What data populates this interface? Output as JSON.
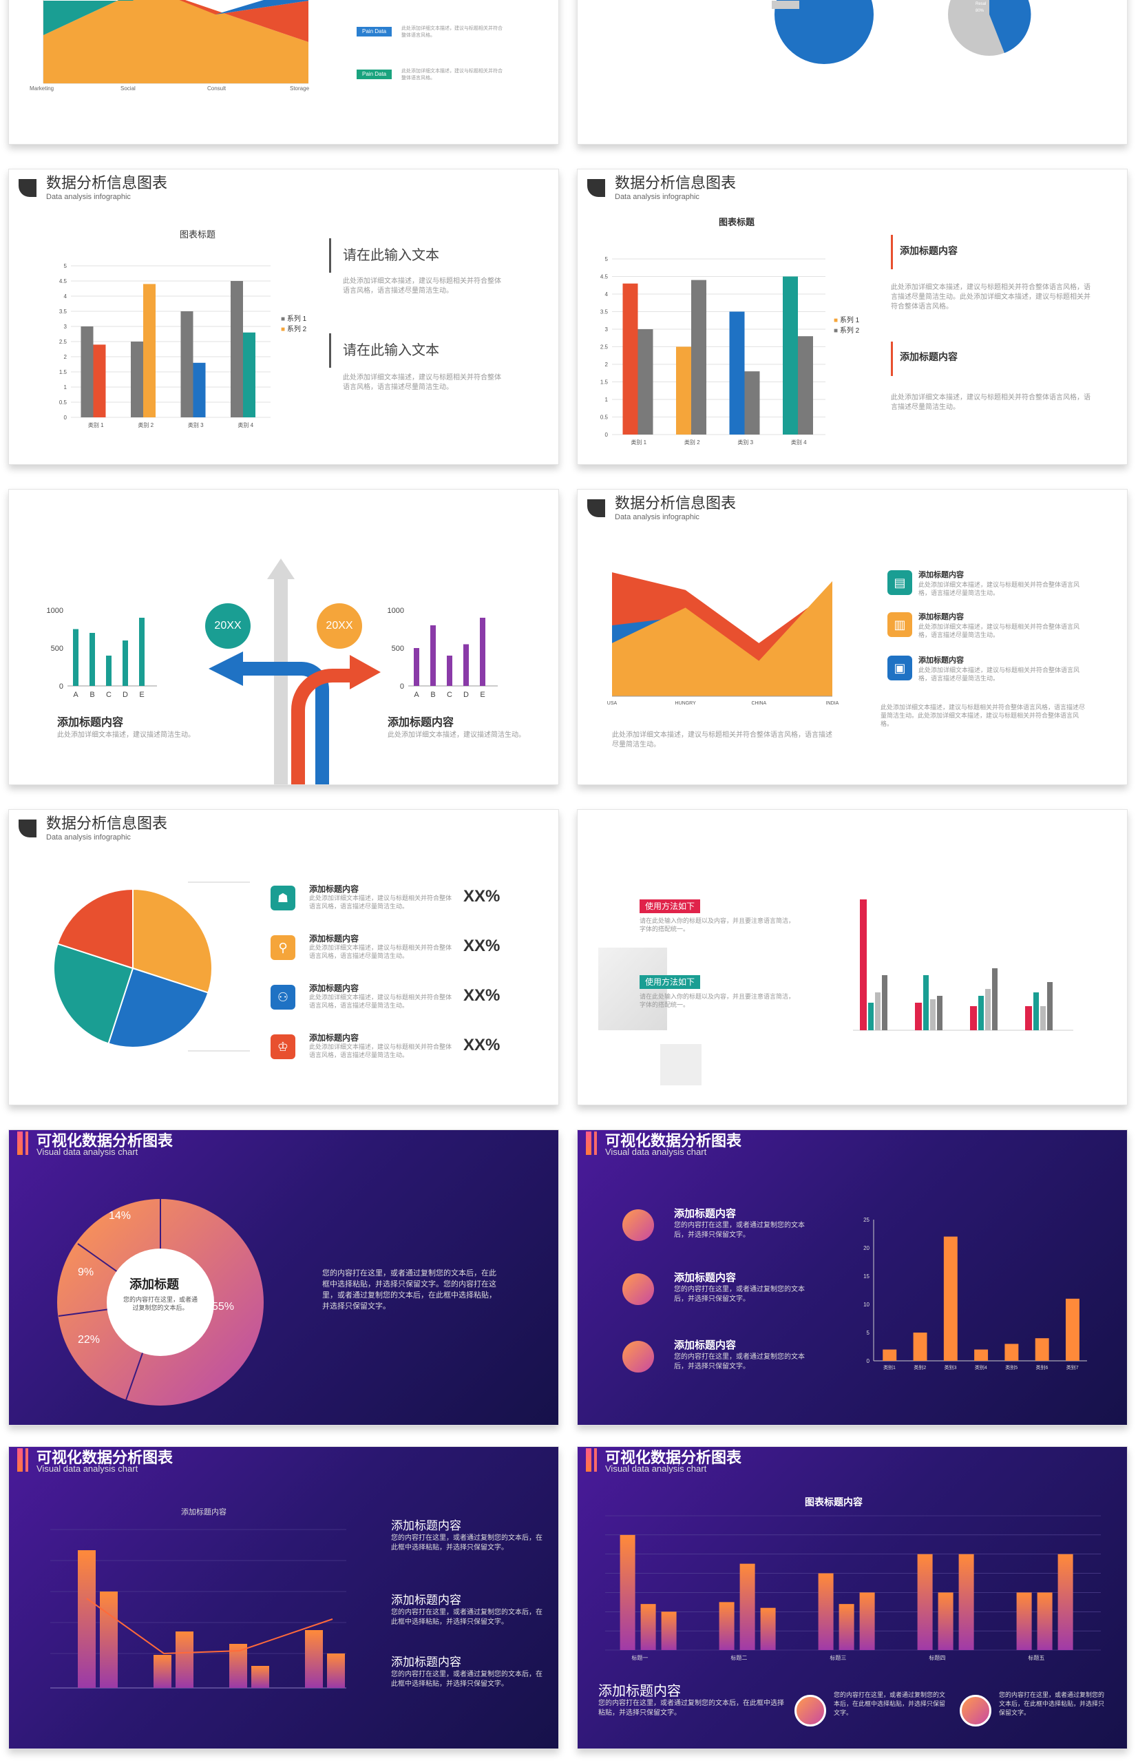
{
  "cards": {
    "c1": {
      "x_labels": [
        "Marketing",
        "Social",
        "Consult",
        "Storage"
      ],
      "tags": [
        "Pain Data",
        "Pain Data"
      ],
      "texts": [
        "此处添加详细文本描述，建议与标题相关并符合整体语言风格。",
        "此处添加详细文本描述，建议与标题相关并符合整体语言风格。"
      ]
    },
    "c2": {
      "pie_label_1": "Resal",
      "pie_label_2": "80%"
    },
    "c3": {
      "title": "数据分析信息图表",
      "subtitle": "Data analysis infographic",
      "chart_title": "图表标题",
      "legend": [
        "系列 1",
        "系列 2"
      ],
      "heading_1": "请在此输入文本",
      "heading_2": "请在此输入文本",
      "text_1": "此处添加详细文本描述，建议与标题相关并符合整体语言风格，语言描述尽量简洁生动。",
      "text_2": "此处添加详细文本描述，建议与标题相关并符合整体语言风格，语言描述尽量简洁生动。"
    },
    "c4": {
      "title": "数据分析信息图表",
      "subtitle": "Data analysis infographic",
      "chart_title": "图表标题",
      "legend": [
        "系列 1",
        "系列 2"
      ],
      "heading_1": "添加标题内容",
      "heading_2": "添加标题内容",
      "text_1": "此处添加详细文本描述，建议与标题相关并符合整体语言风格，语言描述尽量简洁生动。此处添加详细文本描述，建议与标题相关并符合整体语言风格。",
      "text_2": "此处添加详细文本描述，建议与标题相关并符合整体语言风格，语言描述尽量简洁生动。"
    },
    "c5": {
      "badge_left": "20XX",
      "badge_right": "20XX",
      "heading_left": "添加标题内容",
      "heading_right": "添加标题内容",
      "text_left": "此处添加详细文本描述，建议描述简洁生动。",
      "text_right": "此处添加详细文本描述，建议描述简洁生动。"
    },
    "c6": {
      "title": "数据分析信息图表",
      "subtitle": "Data analysis infographic",
      "items": [
        {
          "heading": "添加标题内容",
          "text": "此处添加详细文本描述，建议与标题相关并符合整体语言风格，语言描述尽量简洁生动。"
        },
        {
          "heading": "添加标题内容",
          "text": "此处添加详细文本描述，建议与标题相关并符合整体语言风格，语言描述尽量简洁生动。"
        },
        {
          "heading": "添加标题内容",
          "text": "此处添加详细文本描述，建议与标题相关并符合整体语言风格，语言描述尽量简洁生动。"
        }
      ],
      "bottom_text": "此处添加详细文本描述，建议与标题相关并符合整体语言风格，语言描述尽量简洁生动。",
      "right_text": "此处添加详细文本描述，建议与标题相关并符合整体语言风格，语言描述尽量简洁生动。此处添加详细文本描述，建议与标题相关并符合整体语言风格。"
    },
    "c7": {
      "title": "数据分析信息图表",
      "subtitle": "Data analysis infographic",
      "items": [
        {
          "heading": "添加标题内容",
          "text": "此处添加详细文本描述，建议与标题相关并符合整体语言风格，语言描述尽量简洁生动。",
          "value": "XX%"
        },
        {
          "heading": "添加标题内容",
          "text": "此处添加详细文本描述，建议与标题相关并符合整体语言风格，语言描述尽量简洁生动。",
          "value": "XX%"
        },
        {
          "heading": "添加标题内容",
          "text": "此处添加详细文本描述，建议与标题相关并符合整体语言风格，语言描述尽量简洁生动。",
          "value": "XX%"
        },
        {
          "heading": "添加标题内容",
          "text": "此处添加详细文本描述，建议与标题相关并符合整体语言风格，语言描述尽量简洁生动。",
          "value": "XX%"
        }
      ]
    },
    "c8": {
      "tag_1": "使用方法如下",
      "tag_2": "使用方法如下",
      "text_1": "请在此处输入你的标题以及内容，并且要注意语言简洁，字体的搭配统一。",
      "text_2": "请在此处输入你的标题以及内容，并且要注意语言简洁，字体的搭配统一。"
    },
    "c9": {
      "title": "可视化数据分析图表",
      "subtitle": "Visual data analysis chart",
      "center_title": "添加标题",
      "center_text": "您的内容打在这里，或者通过复制您的文本后。",
      "labels": [
        "14%",
        "9%",
        "55%",
        "22%"
      ],
      "text": "您的内容打在这里，或者通过复制您的文本后，在此框中选择粘贴，并选择只保留文字。您的内容打在这里，或者通过复制您的文本后，在此框中选择粘贴，并选择只保留文字。"
    },
    "c10": {
      "title": "可视化数据分析图表",
      "subtitle": "Visual data analysis chart",
      "items": [
        {
          "heading": "添加标题内容",
          "text": "您的内容打在这里，或者通过复制您的文本后，并选择只保留文字。"
        },
        {
          "heading": "添加标题内容",
          "text": "您的内容打在这里，或者通过复制您的文本后，并选择只保留文字。"
        },
        {
          "heading": "添加标题内容",
          "text": "您的内容打在这里，或者通过复制您的文本后，并选择只保留文字。"
        }
      ]
    },
    "c11": {
      "title": "可视化数据分析图表",
      "subtitle": "Visual data analysis chart",
      "chart_title": "添加标题内容",
      "items": [
        {
          "heading": "添加标题内容",
          "text": "您的内容打在这里，或者通过复制您的文本后，在此框中选择粘贴，并选择只保留文字。"
        },
        {
          "heading": "添加标题内容",
          "text": "您的内容打在这里，或者通过复制您的文本后，在此框中选择粘贴，并选择只保留文字。"
        },
        {
          "heading": "添加标题内容",
          "text": "您的内容打在这里，或者通过复制您的文本后，在此框中选择粘贴，并选择只保留文字。"
        }
      ]
    },
    "c12": {
      "title": "可视化数据分析图表",
      "subtitle": "Visual data analysis chart",
      "chart_title": "图表标题内容",
      "heading": "添加标题内容",
      "text": "您的内容打在这里，或者通过复制您的文本后，在此框中选择粘贴，并选择只保留文字。",
      "icon_texts": [
        "您的内容打在这里，或者通过复制您的文本后，在此框中选择粘贴，并选择只保留文字。",
        "您的内容打在这里，或者通过复制您的文本后，在此框中选择粘贴，并选择只保留文字。"
      ]
    }
  },
  "colors": {
    "orange": "#f5a53a",
    "red": "#e8502f",
    "gray": "#7a7a7a",
    "teal": "#1a9e93",
    "blue": "#1f72c4",
    "purple": "#8a3aa8",
    "pink": "#e0234a"
  },
  "chart_data": [
    {
      "id": "c3",
      "type": "bar",
      "categories": [
        "类别 1",
        "类别 2",
        "类别 3",
        "类别 4"
      ],
      "series": [
        {
          "name": "系列 1",
          "values": [
            3.0,
            2.5,
            3.5,
            4.5
          ]
        },
        {
          "name": "系列 2",
          "values": [
            2.4,
            4.4,
            1.8,
            2.8
          ]
        }
      ],
      "ylim": [
        0,
        5
      ],
      "yticks": [
        "0",
        "0.5",
        "1",
        "1.5",
        "2",
        "2.5",
        "3",
        "3.5",
        "4",
        "4.5",
        "5"
      ]
    },
    {
      "id": "c4",
      "type": "bar",
      "categories": [
        "类别 1",
        "类别 2",
        "类别 3",
        "类别 4"
      ],
      "series": [
        {
          "name": "系列 1",
          "values": [
            4.3,
            2.5,
            3.5,
            4.5
          ]
        },
        {
          "name": "系列 2",
          "values": [
            3.0,
            4.4,
            1.8,
            2.8
          ]
        }
      ],
      "ylim": [
        0,
        5
      ],
      "yticks": [
        "0",
        "0.5",
        "1",
        "1.5",
        "2",
        "2.5",
        "3",
        "3.5",
        "4",
        "4.5",
        "5"
      ]
    },
    {
      "id": "c5a",
      "type": "bar",
      "categories": [
        "A",
        "B",
        "C",
        "D",
        "E"
      ],
      "values": [
        750,
        700,
        400,
        600,
        900
      ],
      "ylim": [
        0,
        1000
      ],
      "yticks": [
        "0",
        "500",
        "1000"
      ]
    },
    {
      "id": "c5b",
      "type": "bar",
      "categories": [
        "A",
        "B",
        "C",
        "D",
        "E"
      ],
      "values": [
        500,
        800,
        400,
        550,
        900
      ],
      "ylim": [
        0,
        1000
      ],
      "yticks": [
        "0",
        "500",
        "1000"
      ]
    },
    {
      "id": "c6",
      "type": "area",
      "categories": [
        "USA",
        "HUNGRY",
        "CHINA",
        "INDIA"
      ],
      "series": [
        {
          "values": [
            7,
            6,
            3,
            6
          ]
        },
        {
          "values": [
            4,
            4.5,
            2,
            5
          ]
        },
        {
          "values": [
            3,
            5,
            2,
            6.5
          ]
        }
      ],
      "ylim": [
        0,
        7
      ]
    },
    {
      "id": "c7",
      "type": "pie",
      "values": [
        30,
        25,
        25,
        20
      ]
    },
    {
      "id": "c10",
      "type": "bar",
      "categories": [
        "类别1",
        "类别2",
        "类别3",
        "类别4",
        "类别5",
        "类别6",
        "类别7"
      ],
      "values": [
        2,
        5,
        22,
        2,
        3,
        4,
        11
      ],
      "ylim": [
        0,
        25
      ],
      "yticks": [
        "0",
        "5",
        "10",
        "15",
        "20",
        "25"
      ]
    },
    {
      "id": "c12",
      "type": "bar",
      "categories": [
        "标题一",
        "标题二",
        "标题三",
        "标题四",
        "标题五"
      ],
      "series": [
        {
          "values": [
            6,
            2.5,
            4,
            5,
            3
          ]
        },
        {
          "values": [
            2.4,
            4.5,
            2.4,
            3,
            3
          ]
        },
        {
          "values": [
            2,
            2.2,
            3,
            5,
            5
          ]
        }
      ],
      "ylim": [
        0,
        7
      ]
    }
  ]
}
